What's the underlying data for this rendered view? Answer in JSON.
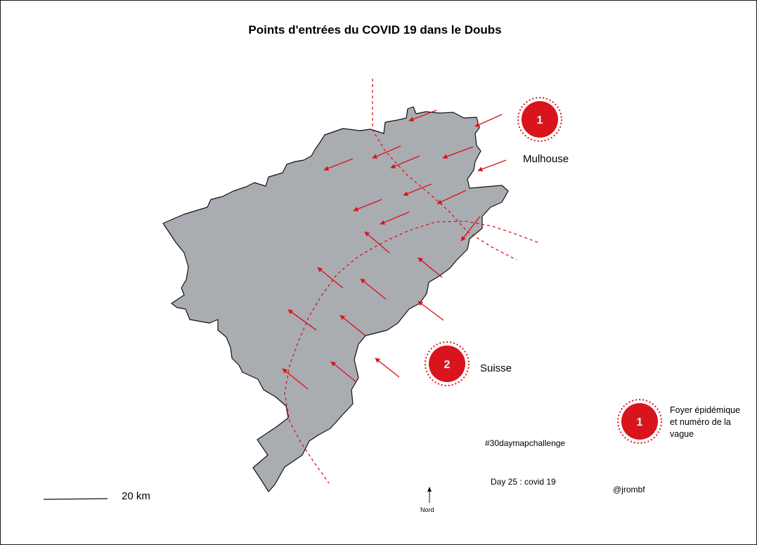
{
  "title": "Points d'entrées du COVID 19 dans le Doubs",
  "colors": {
    "region_fill": "#a9adb2",
    "region_stroke": "#111111",
    "accent_red": "#d9141c",
    "marker_text": "#f2f2f2"
  },
  "foyers": [
    {
      "number": "1",
      "label": "Mulhouse"
    },
    {
      "number": "2",
      "label": "Suisse"
    }
  ],
  "legend": {
    "number": "1",
    "text": "Foyer épidémique et numéro de la vague"
  },
  "hashtag": "#30daymapchallenge",
  "day": "Day 25 :  covid 19",
  "author": "@jrombf",
  "scale_label": "20 km",
  "north_label": "Nord"
}
